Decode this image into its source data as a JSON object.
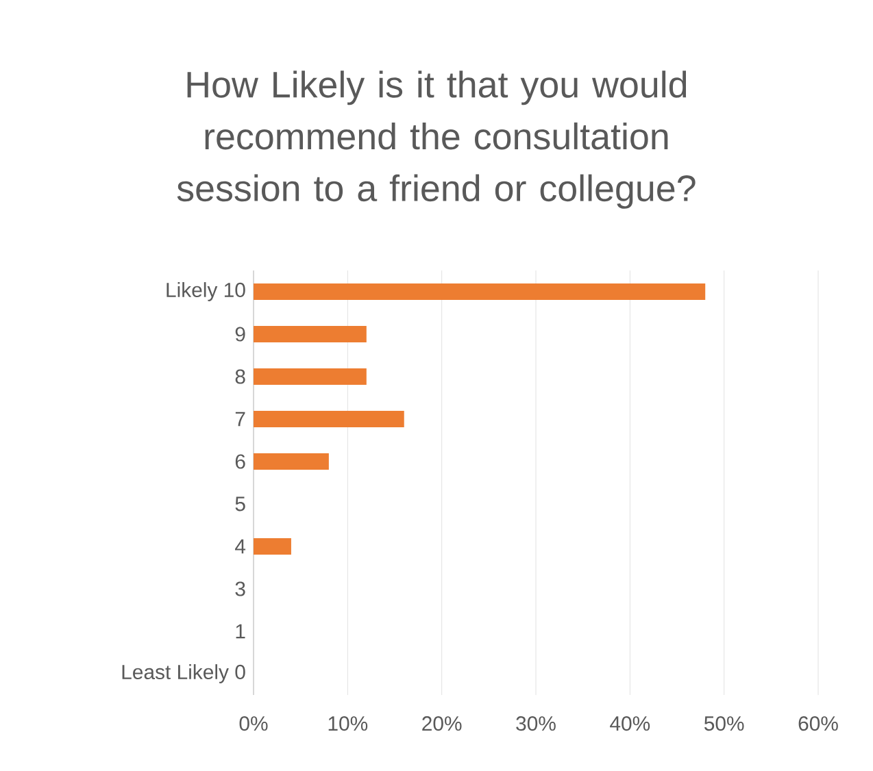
{
  "chart_data": {
    "type": "bar",
    "orientation": "horizontal",
    "title": "How Likely is it that you would recommend the consultation session to a friend or collegue?",
    "categories": [
      "Likely 10",
      "9",
      "8",
      "7",
      "6",
      "5",
      "4",
      "3",
      "1",
      "Least Likely 0"
    ],
    "values": [
      48,
      12,
      12,
      16,
      8,
      0,
      4,
      0,
      0,
      0
    ],
    "color": "#ed7d31",
    "xlim": [
      0,
      60
    ],
    "xticks": [
      {
        "value": 0,
        "label": "0%"
      },
      {
        "value": 10,
        "label": "10%"
      },
      {
        "value": 20,
        "label": "20%"
      },
      {
        "value": 30,
        "label": "30%"
      },
      {
        "value": 40,
        "label": "40%"
      },
      {
        "value": 50,
        "label": "50%"
      },
      {
        "value": 60,
        "label": "60%"
      }
    ],
    "grid": "x"
  }
}
